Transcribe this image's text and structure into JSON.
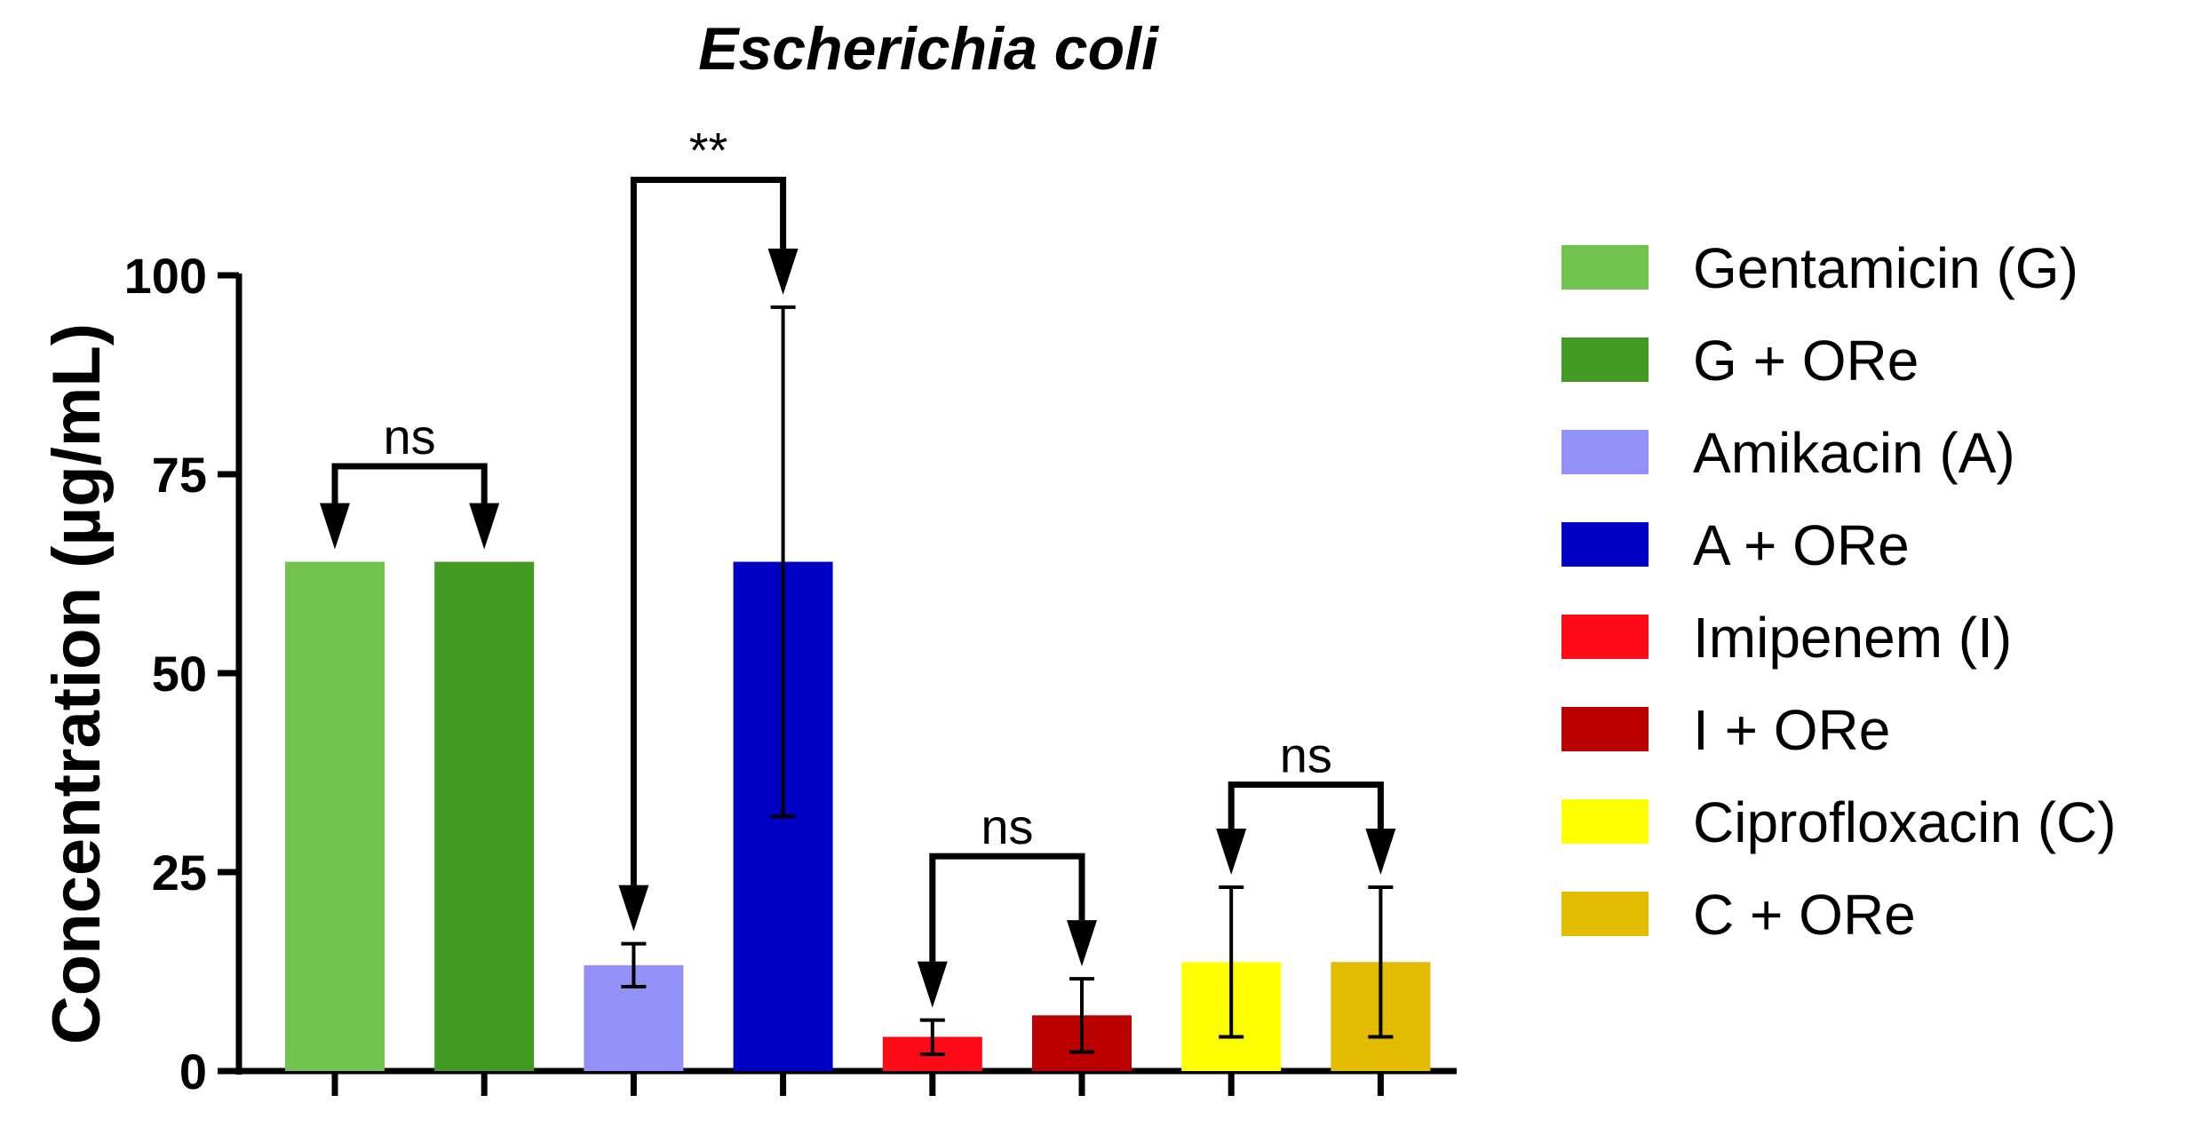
{
  "chart_data": {
    "type": "bar",
    "title": "Escherichia coli",
    "ylabel": "Concentration (µg/mL)",
    "xlabel": "",
    "ylim": [
      0,
      100
    ],
    "yticks": [
      "0",
      "25",
      "50",
      "75",
      "100"
    ],
    "grid": false,
    "legend_position": "right",
    "series": [
      {
        "name": "Gentamicin (G)",
        "value": 64,
        "error": [
          64,
          64
        ],
        "color": "#72C34E"
      },
      {
        "name": "G + ORe",
        "value": 64,
        "error": [
          64,
          64
        ],
        "color": "#439A22"
      },
      {
        "name": "Amikacin (A)",
        "value": 13.3,
        "error": [
          10.6,
          16
        ],
        "color": "#9191F7"
      },
      {
        "name": "A + ORe",
        "value": 64,
        "error": [
          32,
          96
        ],
        "color": "#0000C4"
      },
      {
        "name": "Imipenem (I)",
        "value": 4.3,
        "error": [
          2.1,
          6.4
        ],
        "color": "#FF0A17"
      },
      {
        "name": "I + ORe",
        "value": 7,
        "error": [
          2.4,
          11.6
        ],
        "color": "#BB0000"
      },
      {
        "name": "Ciprofloxacin (C)",
        "value": 13.7,
        "error": [
          4.3,
          23.1
        ],
        "color": "#FFFF00"
      },
      {
        "name": "C + ORe",
        "value": 13.7,
        "error": [
          4.3,
          23.1
        ],
        "color": "#E3BB00"
      }
    ],
    "comparisons": [
      {
        "from": 0,
        "to": 1,
        "label": "ns",
        "bracket_y": 76
      },
      {
        "from": 2,
        "to": 3,
        "label": "**",
        "bracket_y": 112
      },
      {
        "from": 4,
        "to": 5,
        "label": "ns",
        "bracket_y": 27
      },
      {
        "from": 6,
        "to": 7,
        "label": "ns",
        "bracket_y": 36
      }
    ]
  }
}
